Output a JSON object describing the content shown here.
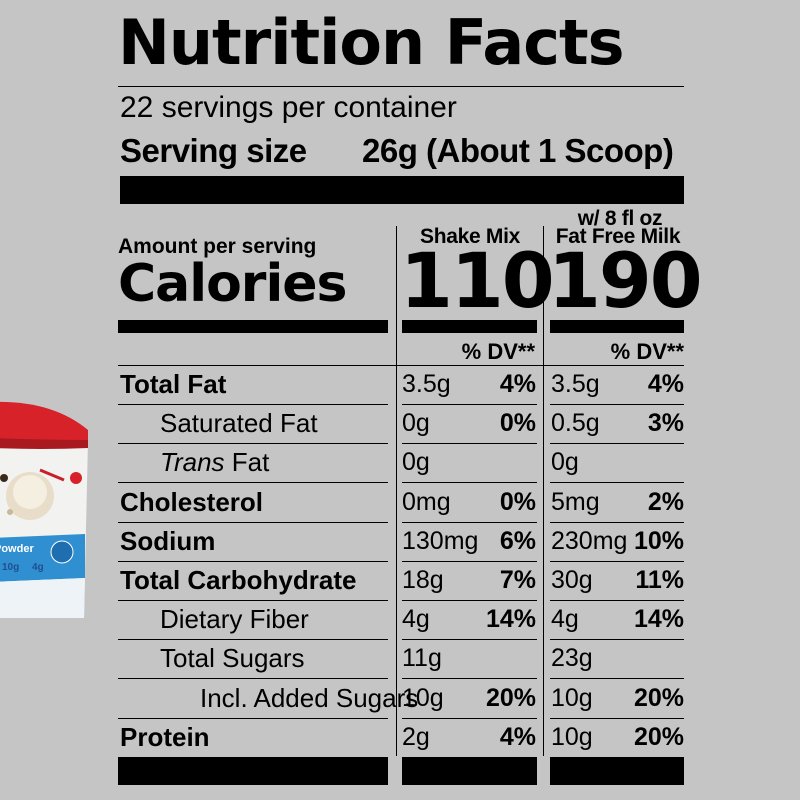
{
  "panel": {
    "title": "Nutrition Facts",
    "servings_per_container": "22 servings per container",
    "serving_size_label": "Serving size",
    "serving_size_value": "26g (About 1 Scoop)",
    "milk_note": "w/ 8 fl oz",
    "col1_header": "Shake Mix",
    "col2_header": "Fat Free Milk",
    "amount_per_serving": "Amount per serving",
    "calories_label": "Calories",
    "calories_col1": "110",
    "calories_col2": "190",
    "dv_header": "% DV**"
  },
  "nutrients": [
    {
      "name": "Total Fat",
      "bold": true,
      "indent": 0,
      "c1": "3.5g",
      "p1": "4%",
      "c2": "3.5g",
      "p2": "4%"
    },
    {
      "name": "Saturated Fat",
      "bold": false,
      "indent": 1,
      "c1": "0g",
      "p1": "0%",
      "c2": "0.5g",
      "p2": "3%"
    },
    {
      "name": "Trans",
      "name_suffix": " Fat",
      "bold": false,
      "indent": 1,
      "italic_prefix": true,
      "c1": "0g",
      "p1": "",
      "c2": "0g",
      "p2": ""
    },
    {
      "name": "Cholesterol",
      "bold": true,
      "indent": 0,
      "c1": "0mg",
      "p1": "0%",
      "c2": "5mg",
      "p2": "2%"
    },
    {
      "name": "Sodium",
      "bold": true,
      "indent": 0,
      "c1": "130mg",
      "p1": "6%",
      "c2": "230mg",
      "p2": "10%"
    },
    {
      "name": "Total Carbohydrate",
      "bold": true,
      "indent": 0,
      "c1": "18g",
      "p1": "7%",
      "c2": "30g",
      "p2": "11%"
    },
    {
      "name": "Dietary Fiber",
      "bold": false,
      "indent": 1,
      "c1": "4g",
      "p1": "14%",
      "c2": "4g",
      "p2": "14%"
    },
    {
      "name": "Total Sugars",
      "bold": false,
      "indent": 1,
      "c1": "11g",
      "p1": "",
      "c2": "23g",
      "p2": ""
    },
    {
      "name": "Incl. Added Sugars",
      "bold": false,
      "indent": 2,
      "c1": "10g",
      "p1": "20%",
      "c2": "10g",
      "p2": "20%"
    },
    {
      "name": "Protein",
      "bold": true,
      "indent": 0,
      "c1": "2g",
      "p1": "4%",
      "c2": "10g",
      "p2": "20%"
    }
  ],
  "product": {
    "label_text": "Powder",
    "stat1": "10g",
    "stat2": "4g"
  },
  "colors": {
    "background": "#c5c5c5",
    "ink": "#000000",
    "lid": "#d8222a"
  }
}
